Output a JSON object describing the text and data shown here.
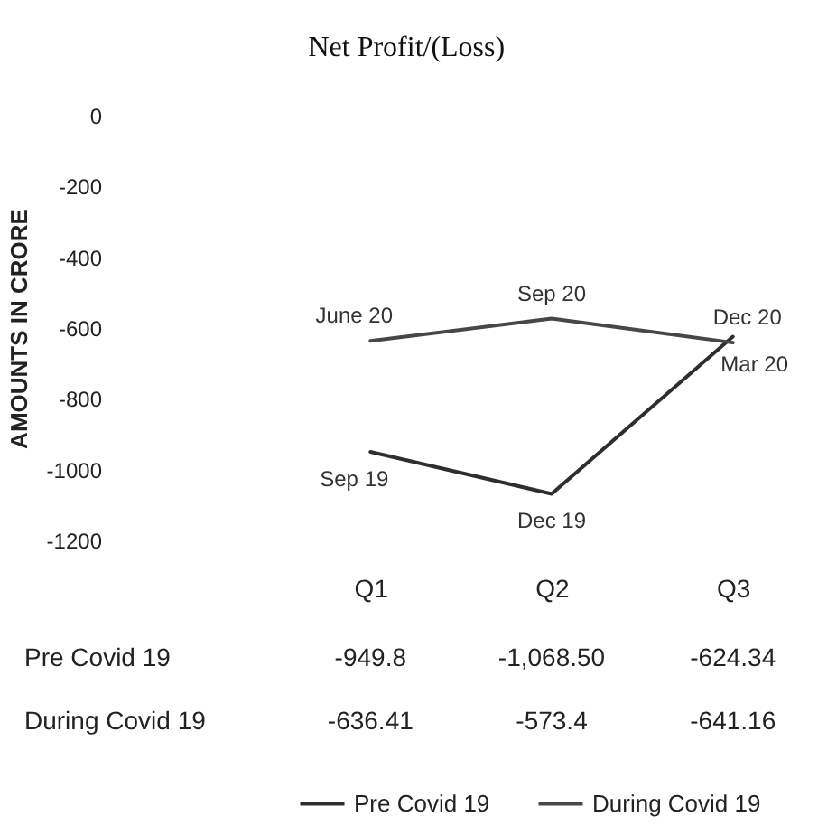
{
  "chart_data": {
    "type": "line",
    "title": "Net Profit/(Loss)",
    "ylabel": "AMOUNTS IN CRORE",
    "categories": [
      "Q1",
      "Q2",
      "Q3"
    ],
    "series": [
      {
        "name": "Pre Covid 19",
        "color": "#2e2e2e",
        "values": [
          -949.8,
          -1068.5,
          -624.34
        ],
        "value_labels": [
          "-949.8",
          "-1,068.50",
          "-624.34"
        ]
      },
      {
        "name": "During Covid 19",
        "color": "#474747",
        "values": [
          -636.41,
          -573.4,
          -641.16
        ],
        "value_labels": [
          "-636.41",
          "-573.4",
          "-641.16"
        ]
      }
    ],
    "ylim": [
      -1200,
      0
    ],
    "yticks": [
      0,
      -200,
      -400,
      -600,
      -800,
      -1000,
      -1200
    ],
    "grid": false,
    "legend": "bottom",
    "marker": "none",
    "line_style": "solid",
    "annotations": [
      {
        "text": "Sep 19",
        "x": "Q1",
        "y": -949.8
      },
      {
        "text": "Dec 19",
        "x": "Q2",
        "y": -1068.5
      },
      {
        "text": "Mar 20",
        "x": "Q3",
        "y": -624.34
      },
      {
        "text": "June 20",
        "x": "Q1",
        "y": -636.41
      },
      {
        "text": "Sep 20",
        "x": "Q2",
        "y": -573.4
      },
      {
        "text": "Dec 20",
        "x": "Q3",
        "y": -641.16
      }
    ]
  }
}
